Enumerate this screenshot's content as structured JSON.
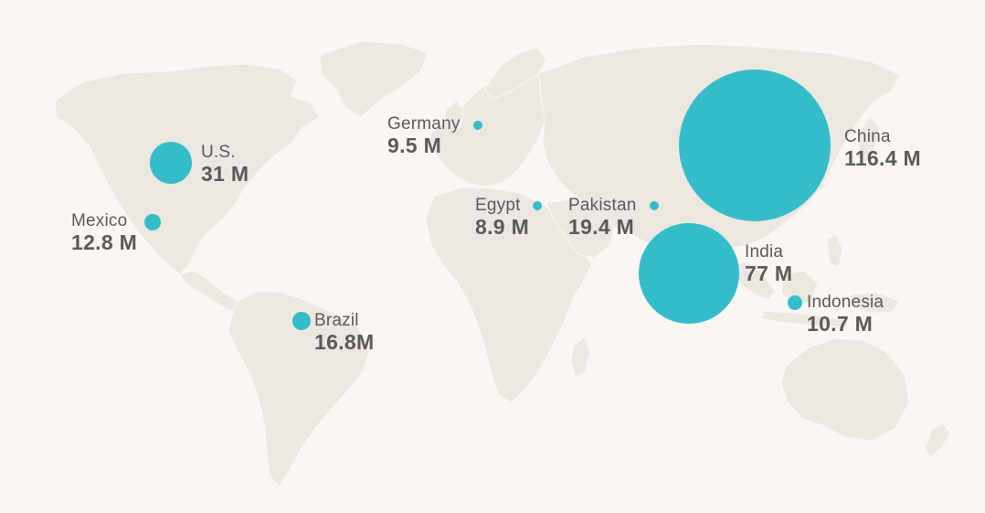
{
  "map": {
    "accent_color": "#35bcc9",
    "land_color": "#ece8e1",
    "background_color": "#faf7f2",
    "countries": [
      {
        "id": "us",
        "name": "U.S.",
        "value_label": "31 M",
        "value_millions": 31
      },
      {
        "id": "mexico",
        "name": "Mexico",
        "value_label": "12.8 M",
        "value_millions": 12.8
      },
      {
        "id": "brazil",
        "name": "Brazil",
        "value_label": "16.8M",
        "value_millions": 16.8
      },
      {
        "id": "germany",
        "name": "Germany",
        "value_label": "9.5 M",
        "value_millions": 9.5
      },
      {
        "id": "egypt",
        "name": "Egypt",
        "value_label": "8.9 M",
        "value_millions": 8.9
      },
      {
        "id": "pakistan",
        "name": "Pakistan",
        "value_label": "19.4 M",
        "value_millions": 19.4
      },
      {
        "id": "china",
        "name": "China",
        "value_label": "116.4 M",
        "value_millions": 116.4
      },
      {
        "id": "india",
        "name": "India",
        "value_label": "77 M",
        "value_millions": 77
      },
      {
        "id": "indonesia",
        "name": "Indonesia",
        "value_label": "10.7 M",
        "value_millions": 10.7
      }
    ]
  }
}
